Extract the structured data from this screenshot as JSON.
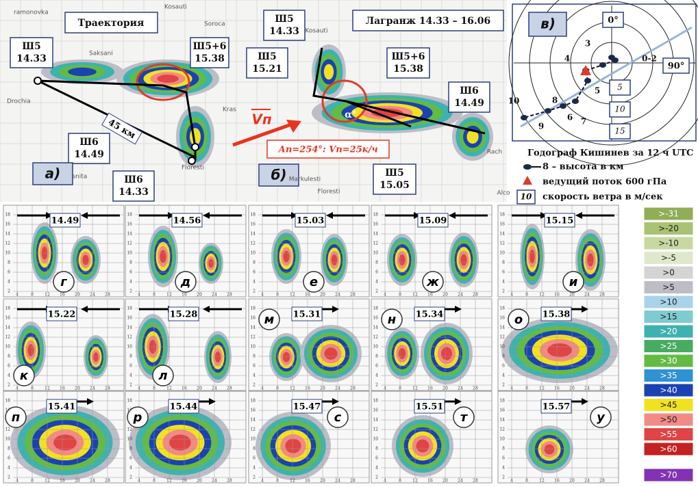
{
  "panel_a": {
    "label": "а)",
    "title": "Траектория",
    "distance": "45 км",
    "callouts": [
      [
        "Ш5",
        "14.33"
      ],
      [
        "Ш5+6",
        "15.38"
      ],
      [
        "Ш6",
        "14.49"
      ],
      [
        "Ш6",
        "14.33"
      ]
    ],
    "places": [
      "ramonovka",
      "Drochia",
      "Soroca",
      "Kosauti",
      "Floresti",
      "Cresnita",
      "Saksani",
      "Kras"
    ]
  },
  "panel_b": {
    "label": "б)",
    "title": "Лагранж 14.33 – 16.06",
    "callouts": [
      [
        "Ш5",
        "14.33"
      ],
      [
        "Ш5",
        "15.21"
      ],
      [
        "Ш5+6",
        "15.38"
      ],
      [
        "Ш6",
        "14.49"
      ],
      [
        "Ш5",
        "15.05"
      ]
    ],
    "vector": "Vп",
    "angle": "α°",
    "motion": "Ап=254°: Vп=25к/ч",
    "places": [
      "Kosauti",
      "Markulesti",
      "Floresti",
      "Rach",
      "Alco"
    ]
  },
  "panel_c": {
    "label": "в)",
    "directions": [
      "0°",
      "90°"
    ],
    "point_labels": [
      "3",
      "4",
      "0-2",
      "5",
      "6",
      "7",
      "8",
      "9",
      "10"
    ],
    "speed_rings": [
      "5",
      "10",
      "15"
    ],
    "legend": {
      "title": "Годограф Кишинев за 12 ч UTC",
      "height": "8 – высота в км",
      "flow": "ведущий поток 600 гПа",
      "speed_box": "10",
      "speed": "скорость ветра в м/сек"
    }
  },
  "small_axis": {
    "y": [
      "2",
      "4",
      "6",
      "8",
      "10",
      "12",
      "14",
      "16",
      "18"
    ],
    "x": [
      "4",
      "8",
      "12",
      "16",
      "20",
      "24",
      "28"
    ]
  },
  "sections": [
    {
      "letter": "г",
      "time": "14.49"
    },
    {
      "letter": "д",
      "time": "14.56"
    },
    {
      "letter": "е",
      "time": "15.03"
    },
    {
      "letter": "ж",
      "time": "15.09"
    },
    {
      "letter": "и",
      "time": "15.15"
    },
    {
      "letter": "к",
      "time": "15.22"
    },
    {
      "letter": "л",
      "time": "15.28"
    },
    {
      "letter": "м",
      "time": "15.31"
    },
    {
      "letter": "н",
      "time": "15.34"
    },
    {
      "letter": "о",
      "time": "15.38"
    },
    {
      "letter": "п",
      "time": "15.41"
    },
    {
      "letter": "р",
      "time": "15.44"
    },
    {
      "letter": "с",
      "time": "15.47"
    },
    {
      "letter": "т",
      "time": "15.51"
    },
    {
      "letter": "у",
      "time": "15.57"
    }
  ],
  "color_scale": [
    {
      "label": ">-31",
      "color": "#8fae55"
    },
    {
      "label": ">-20",
      "color": "#a9c273"
    },
    {
      "label": ">-10",
      "color": "#c7d8a1"
    },
    {
      "label": ">-5",
      "color": "#e0e8cc"
    },
    {
      "label": ">0",
      "color": "#d4d4d4"
    },
    {
      "label": ">5",
      "color": "#bdbdc6"
    },
    {
      "label": ">10",
      "color": "#a9d3ea"
    },
    {
      "label": ">15",
      "color": "#7fcbd2"
    },
    {
      "label": ">20",
      "color": "#3eb2b0"
    },
    {
      "label": ">25",
      "color": "#47ab62"
    },
    {
      "label": ">30",
      "color": "#63bb44"
    },
    {
      "label": ">35",
      "color": "#2f92d2"
    },
    {
      "label": ">40",
      "color": "#1a42b2"
    },
    {
      "label": ">45",
      "color": "#f1e221"
    },
    {
      "label": ">50",
      "color": "#f28a86"
    },
    {
      "label": ">55",
      "color": "#e04444"
    },
    {
      "label": ">60",
      "color": "#c42222"
    },
    {
      "label": ">70",
      "color": "#8232b2"
    }
  ]
}
